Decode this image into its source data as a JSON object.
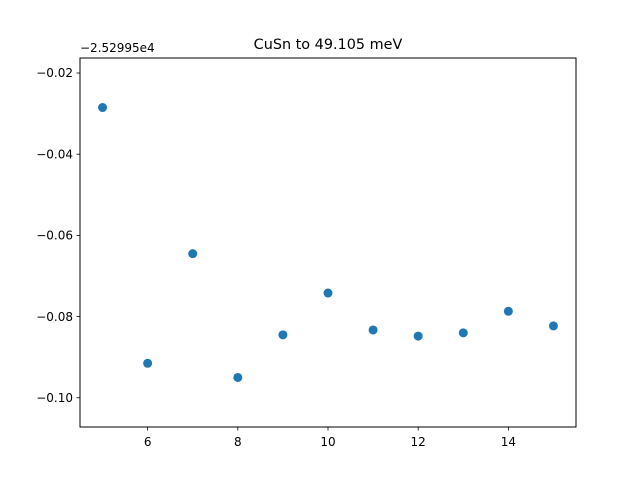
{
  "chart_data": {
    "type": "scatter",
    "title": "CuSn to 49.105 meV",
    "offset_label": "−2.52995e4",
    "xlabel": "",
    "ylabel": "",
    "x": [
      5,
      6,
      7,
      8,
      9,
      10,
      11,
      12,
      13,
      14,
      15
    ],
    "y": [
      -0.0285,
      -0.0915,
      -0.0645,
      -0.095,
      -0.0845,
      -0.0742,
      -0.0833,
      -0.0848,
      -0.084,
      -0.0787,
      -0.0823
    ],
    "xlim": [
      4.5,
      15.5
    ],
    "ylim": [
      -0.1072,
      -0.0163
    ],
    "x_ticks": [
      6,
      8,
      10,
      12,
      14
    ],
    "x_tick_labels": [
      "6",
      "8",
      "10",
      "12",
      "14"
    ],
    "y_ticks": [
      -0.02,
      -0.04,
      -0.06,
      -0.08,
      -0.1
    ],
    "y_tick_labels": [
      "−0.02",
      "−0.04",
      "−0.06",
      "−0.08",
      "−0.10"
    ],
    "marker_color": "#1f77b4",
    "grid": false,
    "legend": "none"
  }
}
